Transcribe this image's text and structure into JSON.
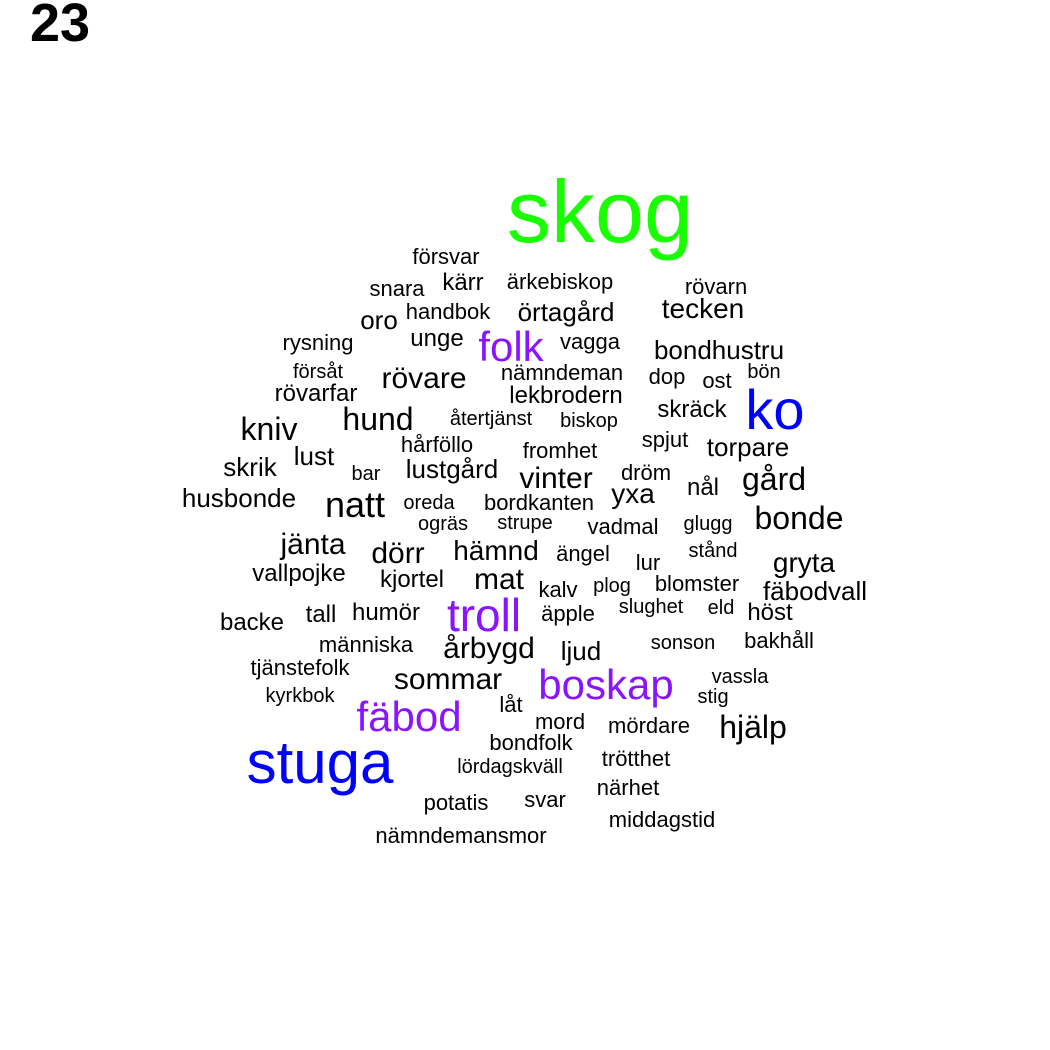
{
  "title": "23",
  "colors": {
    "green": "#1aff00",
    "blue": "#0000ff",
    "purple": "#8a14ff",
    "black": "#000000"
  },
  "words": [
    {
      "text": "skog",
      "color": "green"
    },
    {
      "text": "ko",
      "color": "blue"
    },
    {
      "text": "stuga",
      "color": "blue"
    },
    {
      "text": "folk",
      "color": "purple"
    },
    {
      "text": "troll",
      "color": "purple"
    },
    {
      "text": "boskap",
      "color": "purple"
    },
    {
      "text": "fäbod",
      "color": "purple"
    },
    {
      "text": "försvar",
      "color": "black"
    },
    {
      "text": "snara",
      "color": "black"
    },
    {
      "text": "kärr",
      "color": "black"
    },
    {
      "text": "ärkebiskop",
      "color": "black"
    },
    {
      "text": "rövarn",
      "color": "black"
    },
    {
      "text": "handbok",
      "color": "black"
    },
    {
      "text": "örtagård",
      "color": "black"
    },
    {
      "text": "tecken",
      "color": "black"
    },
    {
      "text": "oro",
      "color": "black"
    },
    {
      "text": "rysning",
      "color": "black"
    },
    {
      "text": "unge",
      "color": "black"
    },
    {
      "text": "vagga",
      "color": "black"
    },
    {
      "text": "bondhustru",
      "color": "black"
    },
    {
      "text": "försåt",
      "color": "black"
    },
    {
      "text": "rövare",
      "color": "black"
    },
    {
      "text": "nämndeman",
      "color": "black"
    },
    {
      "text": "dop",
      "color": "black"
    },
    {
      "text": "ost",
      "color": "black"
    },
    {
      "text": "bön",
      "color": "black"
    },
    {
      "text": "rövarfar",
      "color": "black"
    },
    {
      "text": "lekbrodern",
      "color": "black"
    },
    {
      "text": "skräck",
      "color": "black"
    },
    {
      "text": "kniv",
      "color": "black"
    },
    {
      "text": "hund",
      "color": "black"
    },
    {
      "text": "återtjänst",
      "color": "black"
    },
    {
      "text": "biskop",
      "color": "black"
    },
    {
      "text": "spjut",
      "color": "black"
    },
    {
      "text": "hårföllo",
      "color": "black"
    },
    {
      "text": "fromhet",
      "color": "black"
    },
    {
      "text": "torpare",
      "color": "black"
    },
    {
      "text": "lust",
      "color": "black"
    },
    {
      "text": "skrik",
      "color": "black"
    },
    {
      "text": "bar",
      "color": "black"
    },
    {
      "text": "lustgård",
      "color": "black"
    },
    {
      "text": "vinter",
      "color": "black"
    },
    {
      "text": "dröm",
      "color": "black"
    },
    {
      "text": "gård",
      "color": "black"
    },
    {
      "text": "nål",
      "color": "black"
    },
    {
      "text": "husbonde",
      "color": "black"
    },
    {
      "text": "natt",
      "color": "black"
    },
    {
      "text": "oreda",
      "color": "black"
    },
    {
      "text": "bordkanten",
      "color": "black"
    },
    {
      "text": "yxa",
      "color": "black"
    },
    {
      "text": "bonde",
      "color": "black"
    },
    {
      "text": "ogräs",
      "color": "black"
    },
    {
      "text": "strupe",
      "color": "black"
    },
    {
      "text": "vadmal",
      "color": "black"
    },
    {
      "text": "glugg",
      "color": "black"
    },
    {
      "text": "jänta",
      "color": "black"
    },
    {
      "text": "dörr",
      "color": "black"
    },
    {
      "text": "hämnd",
      "color": "black"
    },
    {
      "text": "ängel",
      "color": "black"
    },
    {
      "text": "stånd",
      "color": "black"
    },
    {
      "text": "lur",
      "color": "black"
    },
    {
      "text": "gryta",
      "color": "black"
    },
    {
      "text": "vallpojke",
      "color": "black"
    },
    {
      "text": "kjortel",
      "color": "black"
    },
    {
      "text": "mat",
      "color": "black"
    },
    {
      "text": "kalv",
      "color": "black"
    },
    {
      "text": "plog",
      "color": "black"
    },
    {
      "text": "blomster",
      "color": "black"
    },
    {
      "text": "fäbodvall",
      "color": "black"
    },
    {
      "text": "backe",
      "color": "black"
    },
    {
      "text": "tall",
      "color": "black"
    },
    {
      "text": "humör",
      "color": "black"
    },
    {
      "text": "äpple",
      "color": "black"
    },
    {
      "text": "slughet",
      "color": "black"
    },
    {
      "text": "eld",
      "color": "black"
    },
    {
      "text": "höst",
      "color": "black"
    },
    {
      "text": "människa",
      "color": "black"
    },
    {
      "text": "årbygd",
      "color": "black"
    },
    {
      "text": "ljud",
      "color": "black"
    },
    {
      "text": "sonson",
      "color": "black"
    },
    {
      "text": "bakhåll",
      "color": "black"
    },
    {
      "text": "tjänstefolk",
      "color": "black"
    },
    {
      "text": "kyrkbok",
      "color": "black"
    },
    {
      "text": "sommar",
      "color": "black"
    },
    {
      "text": "vassla",
      "color": "black"
    },
    {
      "text": "stig",
      "color": "black"
    },
    {
      "text": "låt",
      "color": "black"
    },
    {
      "text": "mord",
      "color": "black"
    },
    {
      "text": "mördare",
      "color": "black"
    },
    {
      "text": "hjälp",
      "color": "black"
    },
    {
      "text": "bondfolk",
      "color": "black"
    },
    {
      "text": "trötthet",
      "color": "black"
    },
    {
      "text": "lördagskväll",
      "color": "black"
    },
    {
      "text": "närhet",
      "color": "black"
    },
    {
      "text": "potatis",
      "color": "black"
    },
    {
      "text": "svar",
      "color": "black"
    },
    {
      "text": "middagstid",
      "color": "black"
    },
    {
      "text": "nämndemansmor",
      "color": "black"
    }
  ]
}
